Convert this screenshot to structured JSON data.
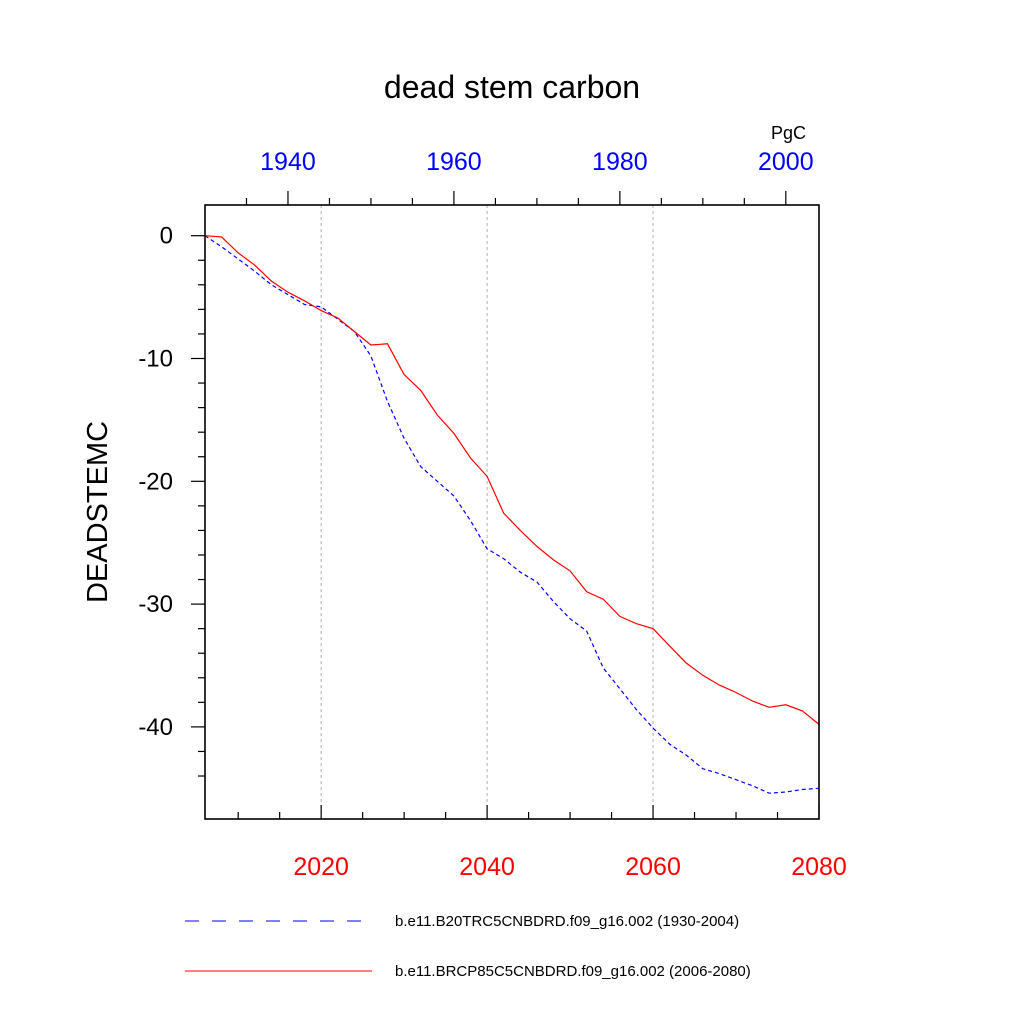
{
  "chart_data": {
    "type": "line",
    "title": "dead stem carbon",
    "ylabel": "DEADSTEMC",
    "units": "PgC",
    "ylim": [
      -47.5,
      2.5
    ],
    "yticks": [
      0,
      -10,
      -20,
      -30,
      -40
    ],
    "y_tick_labels": [
      "0",
      "-10",
      "-20",
      "-30",
      "-40"
    ],
    "bottom_axis": {
      "range": [
        2006,
        2080
      ],
      "ticks": [
        2020,
        2040,
        2060,
        2080
      ],
      "tick_labels": [
        "2020",
        "2040",
        "2060",
        "2080"
      ],
      "color": "#ff0000"
    },
    "top_axis": {
      "range": [
        1930,
        2004
      ],
      "ticks": [
        1940,
        1960,
        1980,
        2000
      ],
      "tick_labels": [
        "1940",
        "1960",
        "1980",
        "2000"
      ],
      "color": "#0000ff"
    },
    "vertical_gridlines_at": [
      2020,
      2040,
      2060
    ],
    "series": [
      {
        "name": "b.e11.B20TRC5CNBDRD.f09_g16.002 (1930-2004)",
        "color": "#0000ff",
        "dash": "dashed",
        "axis": "top",
        "x": [
          1930,
          1932,
          1934,
          1936,
          1938,
          1940,
          1942,
          1944,
          1946,
          1948,
          1950,
          1952,
          1954,
          1956,
          1958,
          1960,
          1962,
          1964,
          1966,
          1968,
          1970,
          1972,
          1974,
          1976,
          1978,
          1980,
          1982,
          1984,
          1986,
          1988,
          1990,
          1992,
          1994,
          1996,
          1998,
          2000,
          2002,
          2004
        ],
        "values": [
          0,
          -0.9,
          -1.9,
          -2.9,
          -4.0,
          -4.8,
          -5.6,
          -5.8,
          -6.8,
          -7.8,
          -9.8,
          -13.5,
          -16.5,
          -18.8,
          -20.0,
          -21.2,
          -23.2,
          -25.5,
          -26.3,
          -27.4,
          -28.2,
          -29.8,
          -31.2,
          -32.2,
          -35.2,
          -36.9,
          -38.6,
          -40.1,
          -41.4,
          -42.3,
          -43.4,
          -43.8,
          -44.3,
          -44.8,
          -45.4,
          -45.3,
          -45.1,
          -45.0
        ]
      },
      {
        "name": "b.e11.BRCP85C5CNBDRD.f09_g16.002 (2006-2080)",
        "color": "#ff0000",
        "dash": "solid",
        "axis": "bottom",
        "x": [
          2006,
          2008,
          2010,
          2012,
          2014,
          2016,
          2018,
          2020,
          2022,
          2024,
          2026,
          2028,
          2030,
          2032,
          2034,
          2036,
          2038,
          2040,
          2042,
          2044,
          2046,
          2048,
          2050,
          2052,
          2054,
          2056,
          2058,
          2060,
          2062,
          2064,
          2066,
          2068,
          2070,
          2072,
          2074,
          2076,
          2078,
          2080
        ],
        "values": [
          0,
          -0.1,
          -1.4,
          -2.4,
          -3.7,
          -4.6,
          -5.3,
          -6.1,
          -6.7,
          -7.8,
          -8.9,
          -8.8,
          -11.3,
          -12.6,
          -14.6,
          -16.1,
          -18.1,
          -19.6,
          -22.6,
          -24.0,
          -25.3,
          -26.4,
          -27.3,
          -29.0,
          -29.6,
          -31.0,
          -31.6,
          -32.0,
          -33.4,
          -34.8,
          -35.8,
          -36.6,
          -37.2,
          -37.9,
          -38.4,
          -38.2,
          -38.7,
          -39.8
        ]
      }
    ]
  }
}
